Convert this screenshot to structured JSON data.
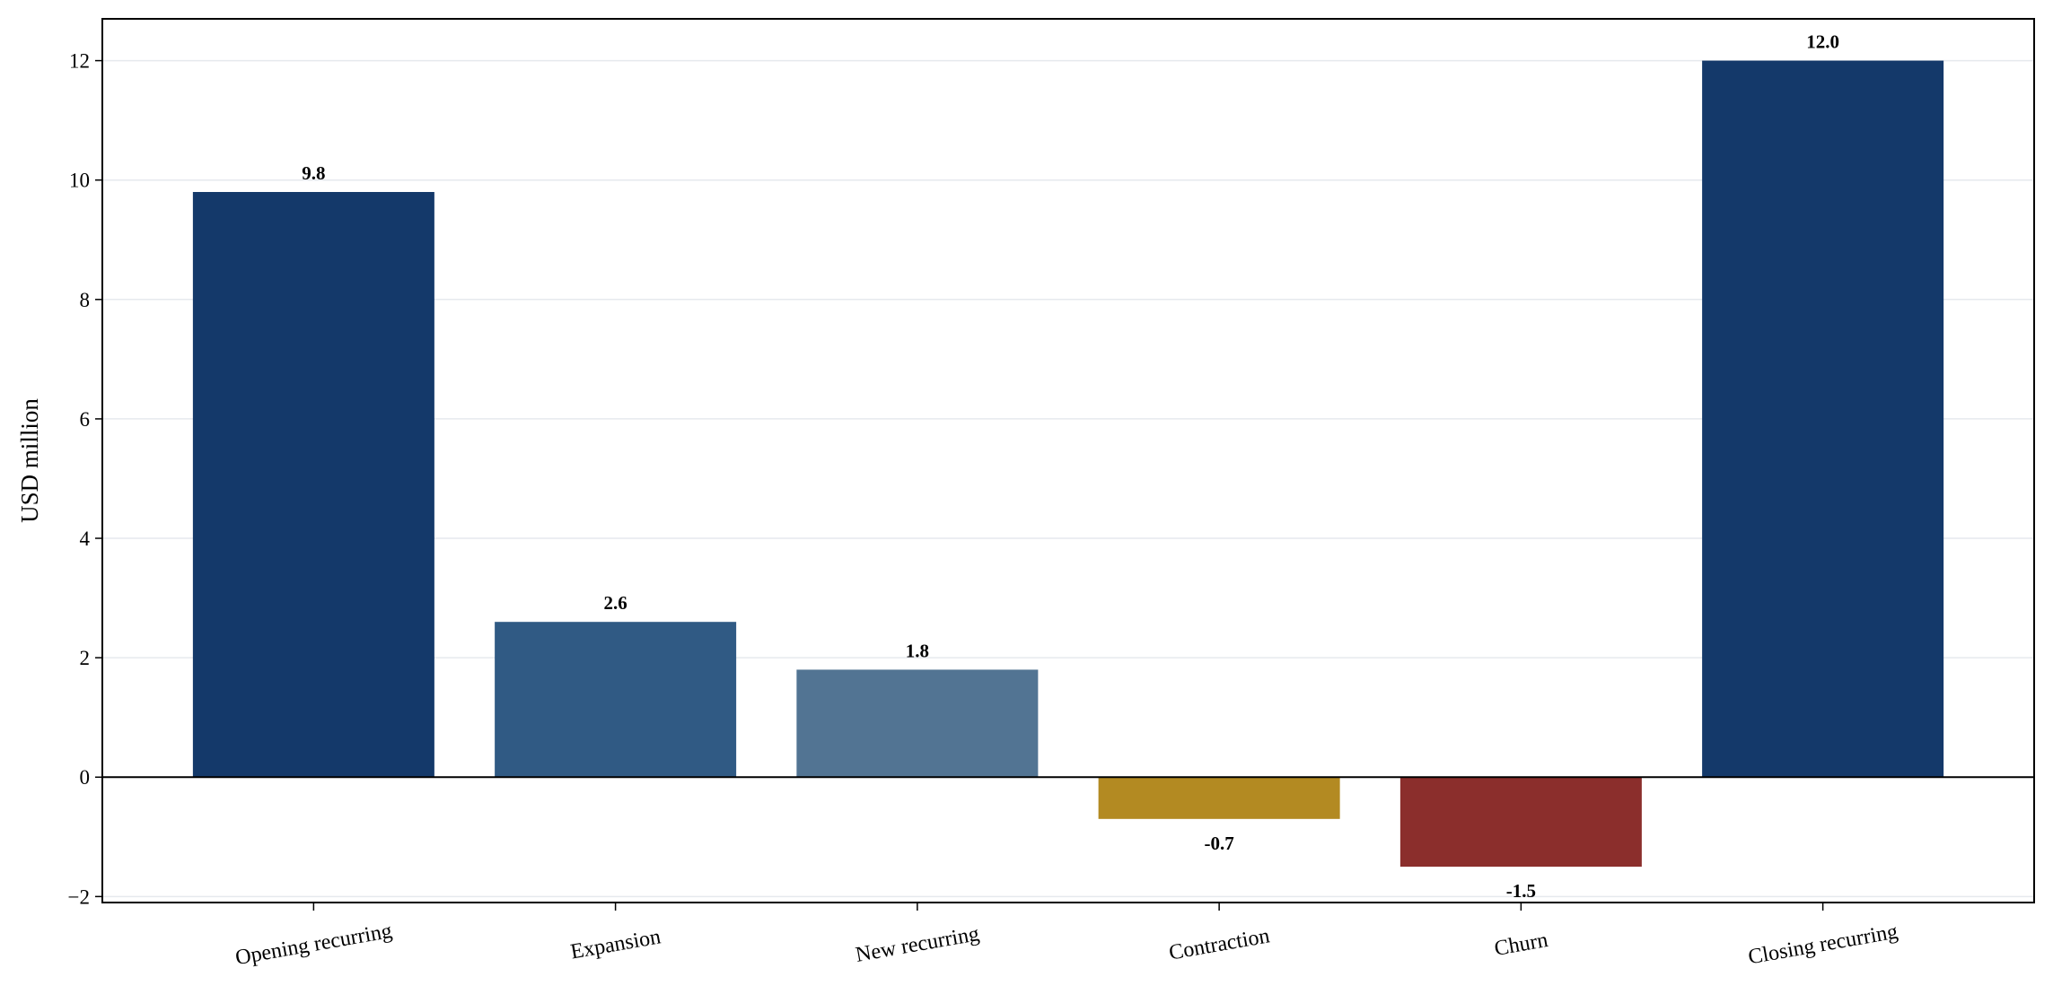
{
  "chart_data": {
    "type": "bar",
    "title": "",
    "xlabel": "",
    "ylabel": "USD million",
    "categories": [
      "Opening recurring",
      "Expansion",
      "New recurring",
      "Contraction",
      "Churn",
      "Closing recurring"
    ],
    "values": [
      9.8,
      2.6,
      1.8,
      -0.7,
      -1.5,
      12.0
    ],
    "value_labels": [
      "9.8",
      "2.6",
      "1.8",
      "-0.7",
      "-1.5",
      "12.0"
    ],
    "colors": [
      "#14396a",
      "#305a84",
      "#527493",
      "#b38a22",
      "#8b2e2c",
      "#14396a"
    ],
    "ylim": [
      -2.1,
      12.7
    ],
    "yticks": [
      -2,
      0,
      2,
      4,
      6,
      8,
      10,
      12
    ],
    "ytick_labels": [
      "−2",
      "0",
      "2",
      "4",
      "6",
      "8",
      "10",
      "12"
    ],
    "grid": "horizontal, light",
    "zero_line": true,
    "legend": "none"
  }
}
